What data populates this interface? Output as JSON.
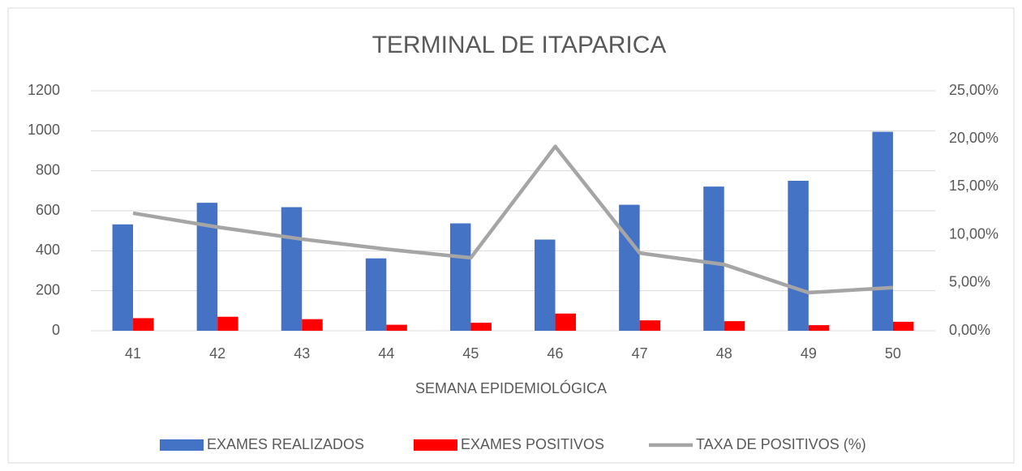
{
  "chart_data": {
    "type": "bar",
    "title": "TERMINAL DE ITAPARICA",
    "x_label": "SEMANA EPIDEMIOLÓGICA",
    "categories": [
      "41",
      "42",
      "43",
      "44",
      "45",
      "46",
      "47",
      "48",
      "49",
      "50"
    ],
    "series": [
      {
        "name": "EXAMES REALIZADOS",
        "color": "#4472c4",
        "type": "bar",
        "values": [
          532,
          640,
          618,
          362,
          537,
          456,
          630,
          721,
          750,
          995
        ]
      },
      {
        "name": "EXAMES POSITIVOS",
        "color": "#ff0000",
        "type": "bar",
        "values": [
          63,
          70,
          58,
          30,
          40,
          86,
          52,
          48,
          28,
          45
        ]
      },
      {
        "name": "TAXA DE POSITIVOS (%)",
        "color": "#a5a5a5",
        "type": "line",
        "axis": "y2",
        "values": [
          12.25,
          10.8,
          9.55,
          8.5,
          7.6,
          19.2,
          8.1,
          6.9,
          3.97,
          4.5
        ]
      }
    ],
    "ylim": [
      0,
      1200
    ],
    "yticks": [
      0,
      200,
      400,
      600,
      800,
      1000,
      1200
    ],
    "y2lim": [
      0,
      25
    ],
    "y2ticks": [
      {
        "value": 0,
        "label": "0,00%"
      },
      {
        "value": 5,
        "label": "5,00%"
      },
      {
        "value": 10,
        "label": "10,00%"
      },
      {
        "value": 15,
        "label": "15,00%"
      },
      {
        "value": 20,
        "label": "20,00%"
      },
      {
        "value": 25,
        "label": "25,00%"
      }
    ],
    "grid": true,
    "legend": "bottom"
  }
}
